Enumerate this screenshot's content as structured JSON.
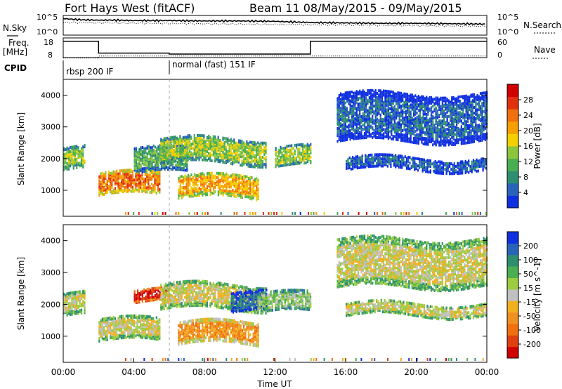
{
  "header": {
    "station": "Fort Hays West (fitACF)",
    "beam_info": "Beam 11 08/May/2015 - 09/May/2015"
  },
  "left_labels": {
    "nsky": "N.Sky",
    "freq": "Freq.",
    "freq_unit": "[MHz]",
    "cpid": "CPID"
  },
  "right_labels": {
    "nsearch": "N.Search",
    "nave": "Nave"
  },
  "cpid_labels": [
    "rbsp 200 IF",
    "normal (fast) 151 IF"
  ],
  "colors": {
    "power_scale": [
      "#1030e0",
      "#2a64b8",
      "#2e8f70",
      "#4cae52",
      "#8cc63f",
      "#f5d000",
      "#f5a000",
      "#f07010",
      "#e03010",
      "#d00000"
    ],
    "velocity_scale": [
      "#1030e0",
      "#2a64b8",
      "#2e8f70",
      "#4cae52",
      "#9ccc40",
      "#c0c0c0",
      "#f0b020",
      "#f09020",
      "#f07010",
      "#e04010",
      "#d00000"
    ]
  },
  "chart_data": [
    {
      "type": "line",
      "title": "N.Sky / N.Search",
      "y_ticks_left": [
        "10^5",
        "10^0"
      ],
      "y_ticks_right": [
        "10^5",
        "10^0"
      ],
      "series": [
        {
          "name": "N.Sky",
          "x_hours": [
            0,
            1,
            2,
            3,
            4,
            6,
            8,
            10,
            12,
            14,
            16,
            18,
            20,
            22,
            24
          ],
          "values": [
            4.2,
            3.9,
            3.8,
            3.8,
            3.7,
            3.7,
            3.6,
            3.6,
            3.5,
            3.2,
            3.1,
            3.0,
            3.0,
            2.9,
            2.8
          ]
        }
      ]
    },
    {
      "type": "line",
      "title": "Freq / Nave",
      "y_ticks_left": [
        "18",
        "8"
      ],
      "y_ticks_right": [
        "60",
        "0"
      ],
      "series": [
        {
          "name": "Freq.",
          "x_hours": [
            0,
            2,
            2,
            6,
            6,
            14,
            14,
            24
          ],
          "values": [
            17,
            17,
            11,
            11,
            10.5,
            10.5,
            17,
            17
          ]
        }
      ]
    },
    {
      "type": "heatmap",
      "title": "",
      "ylabel": "Slant Range [km]",
      "xlabel": "",
      "y_ticks": [
        "1000",
        "2000",
        "3000",
        "4000"
      ],
      "colorbar_label": "Power [dB]",
      "colorbar_ticks": [
        "4",
        "8",
        "12",
        "16",
        "20",
        "24",
        "28"
      ],
      "regions": [
        {
          "from_h": 0.0,
          "to_h": 1.2,
          "range_km": [
            1600,
            2300
          ],
          "level": 4
        },
        {
          "from_h": 2.0,
          "to_h": 5.5,
          "range_km": [
            800,
            1500
          ],
          "level": 7
        },
        {
          "from_h": 4.0,
          "to_h": 7.0,
          "range_km": [
            1500,
            2300
          ],
          "level": 3
        },
        {
          "from_h": 5.5,
          "to_h": 11.5,
          "range_km": [
            1800,
            2600
          ],
          "level": 4
        },
        {
          "from_h": 6.5,
          "to_h": 11.0,
          "range_km": [
            700,
            1400
          ],
          "level": 6
        },
        {
          "from_h": 12.0,
          "to_h": 14.0,
          "range_km": [
            1700,
            2300
          ],
          "level": 4
        },
        {
          "from_h": 15.5,
          "to_h": 24.0,
          "range_km": [
            2500,
            4000
          ],
          "level": 1
        },
        {
          "from_h": 16.0,
          "to_h": 24.0,
          "range_km": [
            1600,
            2000
          ],
          "level": 1
        }
      ]
    },
    {
      "type": "heatmap",
      "title": "",
      "ylabel": "Slant Range [km]",
      "xlabel": "Time UT",
      "y_ticks": [
        "1000",
        "2000",
        "3000",
        "4000"
      ],
      "x_ticks": [
        "00:00",
        "04:00",
        "08:00",
        "12:00",
        "16:00",
        "20:00",
        "00:00"
      ],
      "colorbar_label": "Velocity [m s^-1]",
      "colorbar_ticks": [
        "200",
        "100",
        "50",
        "15",
        "-15",
        "-50",
        "-100",
        "-200"
      ],
      "regions": [
        {
          "from_h": 0.0,
          "to_h": 1.2,
          "range_km": [
            1600,
            2300
          ],
          "level": 5
        },
        {
          "from_h": 2.0,
          "to_h": 5.5,
          "range_km": [
            800,
            1500
          ],
          "level": 5
        },
        {
          "from_h": 4.0,
          "to_h": 6.0,
          "range_km": [
            2000,
            2400
          ],
          "level": 10
        },
        {
          "from_h": 5.5,
          "to_h": 11.5,
          "range_km": [
            1800,
            2600
          ],
          "level": 5
        },
        {
          "from_h": 6.5,
          "to_h": 11.0,
          "range_km": [
            700,
            1400
          ],
          "level": 7
        },
        {
          "from_h": 9.5,
          "to_h": 11.5,
          "range_km": [
            1700,
            2300
          ],
          "level": 1
        },
        {
          "from_h": 11.0,
          "to_h": 14.0,
          "range_km": [
            1700,
            2300
          ],
          "level": 4
        },
        {
          "from_h": 15.5,
          "to_h": 24.0,
          "range_km": [
            2500,
            4000
          ],
          "level": 5
        },
        {
          "from_h": 16.0,
          "to_h": 24.0,
          "range_km": [
            1600,
            2000
          ],
          "level": 5
        }
      ]
    }
  ]
}
